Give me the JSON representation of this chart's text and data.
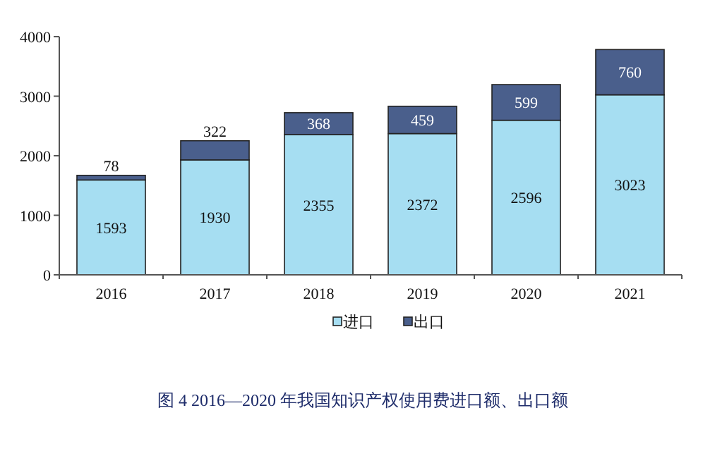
{
  "chart_data": {
    "type": "bar",
    "title": "图 4   2016—2020 年我国知识产权使用费进口额、出口额",
    "categories": [
      "2016",
      "2017",
      "2018",
      "2019",
      "2020",
      "2021"
    ],
    "series": [
      {
        "name": "进口",
        "color": "#a6def2",
        "values": [
          1593,
          1930,
          2355,
          2372,
          2596,
          3023
        ]
      },
      {
        "name": "出口",
        "color": "#4a5f8c",
        "values": [
          78,
          322,
          368,
          459,
          599,
          760
        ]
      }
    ],
    "stacked": true,
    "ylim": [
      0,
      4000
    ],
    "yticks": [
      0,
      1000,
      2000,
      3000,
      4000
    ],
    "data_labels": true,
    "legend": "bottom"
  }
}
